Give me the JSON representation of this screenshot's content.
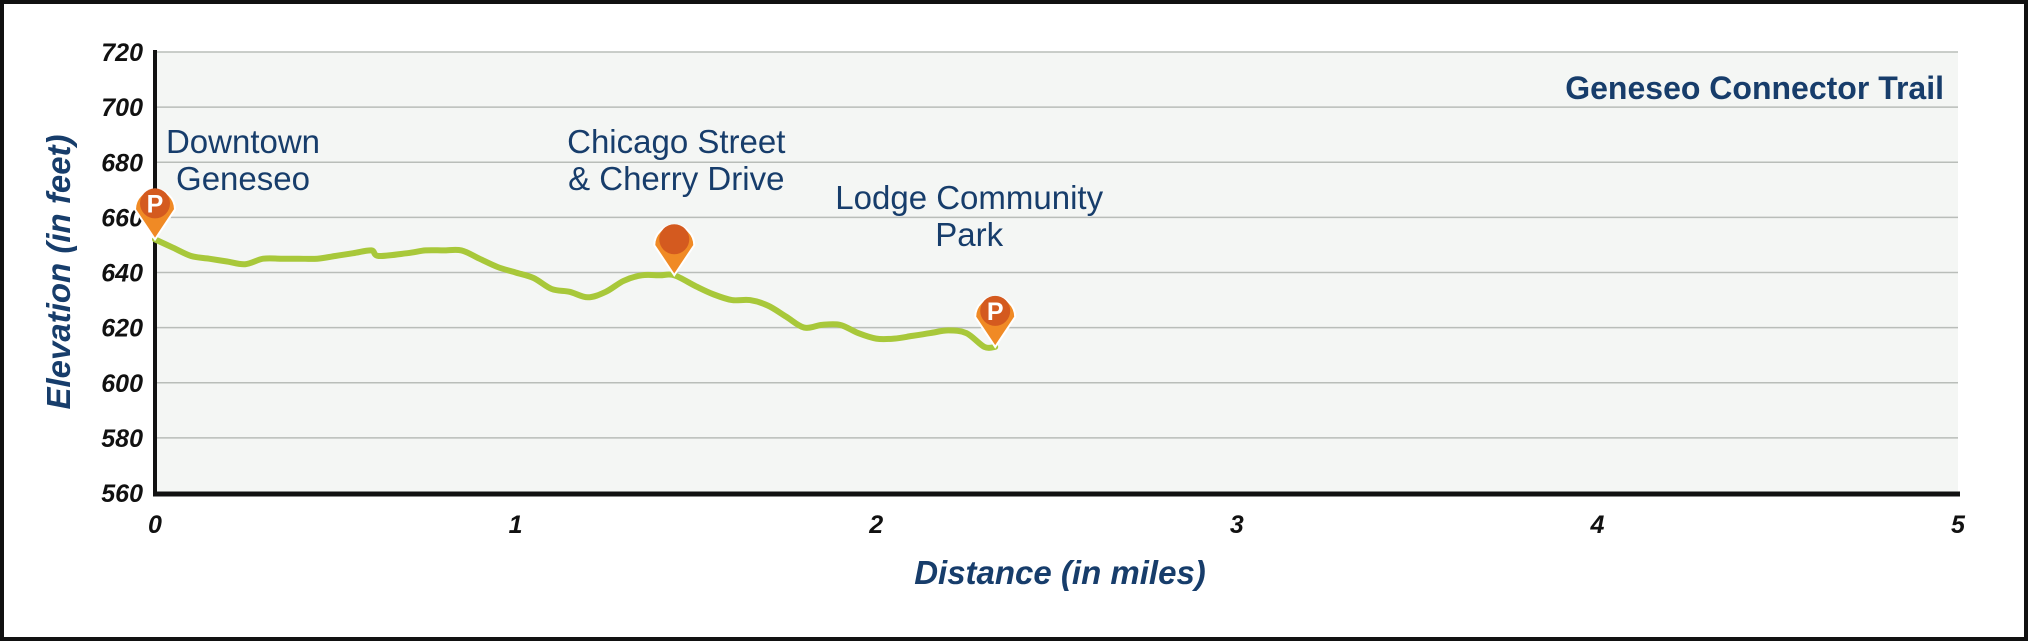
{
  "chart_data": {
    "type": "line",
    "title": "Geneseo Connector Trail",
    "xlabel": "Distance (in miles)",
    "ylabel": "Elevation (in feet)",
    "xlim": [
      0,
      5
    ],
    "ylim": [
      560,
      720
    ],
    "xticks": [
      "0",
      "1",
      "2",
      "3",
      "4",
      "5"
    ],
    "yticks": [
      "560",
      "580",
      "600",
      "620",
      "640",
      "660",
      "680",
      "700",
      "720"
    ],
    "grid": true,
    "colors": {
      "line": "#a8c83a",
      "plot_bg": "#f4f6f4",
      "grid": "#b9bdb9",
      "text": "#173d6b",
      "marker": "#d45a1f",
      "marker_outline": "#f08a25"
    },
    "series": [
      {
        "x": [
          0,
          0.05,
          0.1,
          0.15,
          0.2,
          0.25,
          0.3,
          0.35,
          0.4,
          0.45,
          0.5,
          0.55,
          0.6,
          0.62,
          0.7,
          0.75,
          0.8,
          0.85,
          0.9,
          0.95,
          1.0,
          1.05,
          1.1,
          1.15,
          1.2,
          1.25,
          1.3,
          1.35,
          1.4,
          1.44,
          1.5,
          1.55,
          1.6,
          1.65,
          1.7,
          1.75,
          1.8,
          1.85,
          1.9,
          1.95,
          2.0,
          2.05,
          2.1,
          2.15,
          2.2,
          2.25,
          2.3,
          2.33
        ],
        "y": [
          652,
          649,
          646,
          645,
          644,
          643,
          645,
          645,
          645,
          645,
          646,
          647,
          648,
          646,
          647,
          648,
          648,
          648,
          645,
          642,
          640,
          638,
          634,
          633,
          631,
          633,
          637,
          639,
          639,
          639,
          635,
          632,
          630,
          630,
          628,
          624,
          620,
          621,
          621,
          618,
          616,
          616,
          617,
          618,
          619,
          618,
          613,
          613
        ]
      }
    ],
    "annotations": [
      {
        "text_lines": [
          "Downtown",
          "Geneseo"
        ],
        "x": 0,
        "y": 652,
        "marker": "P"
      },
      {
        "text_lines": [
          "Chicago Street",
          "& Cherry Drive"
        ],
        "x": 1.44,
        "y": 639,
        "marker": ""
      },
      {
        "text_lines": [
          "Lodge Community",
          "Park"
        ],
        "x": 2.33,
        "y": 613,
        "marker": "P"
      }
    ]
  }
}
